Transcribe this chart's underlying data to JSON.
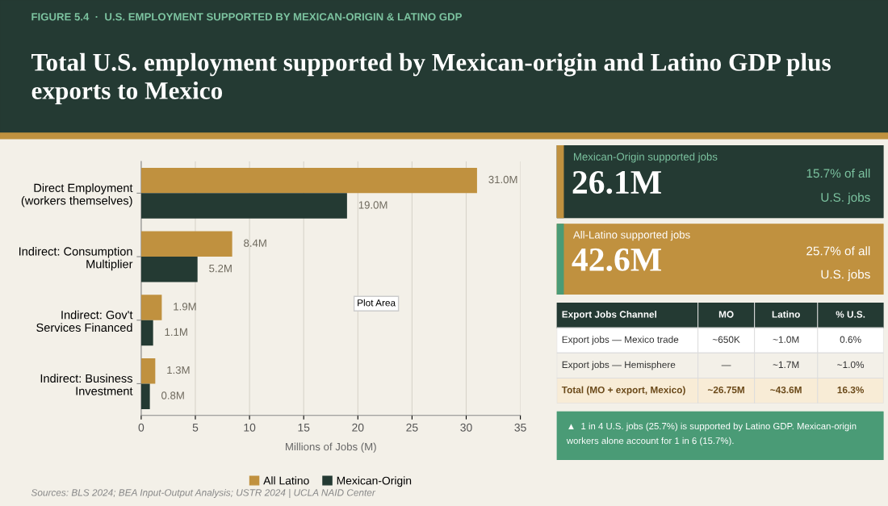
{
  "chart_data": [
    {
      "type": "bar",
      "orientation": "horizontal",
      "subtitle": "FIGURE 5.4  ·  U.S. EMPLOYMENT SUPPORTED BY MEXICAN-ORIGIN & LATINO GDP",
      "title": "Total U.S. employment supported by Mexican-origin and Latino GDP plus exports to Mexico",
      "categories": [
        "Direct Employment\n(workers themselves)",
        "Indirect: Consumption\nMultiplier",
        "Indirect: Gov't\nServices Financed",
        "Indirect: Business\nInvestment"
      ],
      "series": [
        {
          "name": "All Latino",
          "color": "#c0913f",
          "values": [
            31.0,
            8.4,
            1.9,
            1.3
          ],
          "value_labels": [
            "31.0M",
            "8.4M",
            "1.9M",
            "1.3M"
          ]
        },
        {
          "name": "Mexican-Origin",
          "color": "#243a33",
          "values": [
            19.0,
            5.2,
            1.1,
            0.8
          ],
          "value_labels": [
            "19.0M",
            "5.2M",
            "1.1M",
            "0.8M"
          ]
        }
      ],
      "xlim": [
        0,
        35
      ],
      "xticks": [
        0,
        5,
        10,
        15,
        20,
        25,
        30,
        35
      ],
      "xlabel": "Millions of Jobs (M)",
      "grid": "x",
      "legend": "bottom",
      "annotations": [
        "Plot Area",
        "Sources: BLS 2024; BEA Input-Output Analysis; USTR 2024 | UCLA NAID Center"
      ]
    },
    {
      "type": "other",
      "title": "Mexican-Origin supported jobs",
      "color": "#243a33",
      "annotations": [
        "26.1M",
        "15.7% of all",
        "U.S. jobs"
      ]
    },
    {
      "type": "other",
      "title": "All-Latino supported jobs",
      "color": "#c0913f",
      "annotations": [
        "42.6M",
        "25.7% of all",
        "U.S. jobs"
      ]
    },
    {
      "type": "other",
      "title": "Export Jobs Channel",
      "categories": [
        "MO",
        "Latino",
        "% U.S."
      ],
      "y_categories": [
        "Export jobs — Mexico trade",
        "Export jobs — Hemisphere",
        "Total (MO + export, Mexico)"
      ],
      "cell_labels": [
        [
          "~650K",
          "~1.0M",
          "0.6%"
        ],
        [
          "—",
          "~1.7M",
          "~1.0%"
        ],
        [
          "~26.75M",
          "~43.6M",
          "16.3%"
        ]
      ]
    },
    {
      "type": "other",
      "color": "#4a9b76",
      "annotations": [
        "▲  1 in 4 U.S. jobs (25.7%) is supported by Latino GDP. Mexican-origin",
        "workers alone account for 1 in 6 (15.7%)."
      ]
    }
  ]
}
